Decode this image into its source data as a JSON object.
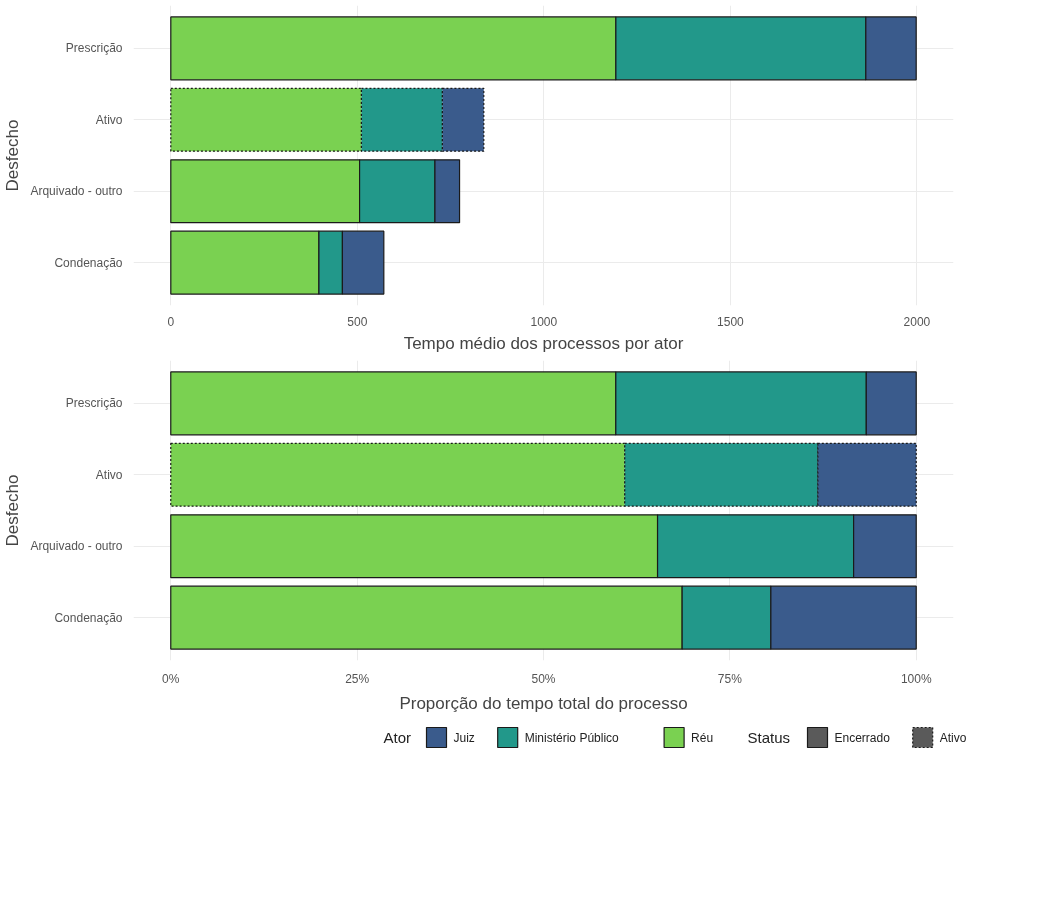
{
  "chart_data": [
    {
      "type": "bar",
      "orientation": "horizontal",
      "stacked": true,
      "xlabel": "Tempo médio dos processos por ator",
      "ylabel": "Desfecho",
      "categories": [
        "Prescrição",
        "Ativo",
        "Arquivado - outro",
        "Condenação"
      ],
      "series": [
        {
          "color": "#7ad151",
          "values": [
            1193,
            511,
            506,
            397
          ]
        },
        {
          "color": "#22988a",
          "values": [
            670,
            217,
            202,
            63
          ]
        },
        {
          "color": "#3a5b8c",
          "values": [
            135,
            111,
            66,
            111
          ]
        }
      ],
      "xlim": [
        -100,
        2098
      ],
      "xticks": [
        0,
        500,
        1000,
        1500,
        2000
      ],
      "grid": true,
      "legend": false
    },
    {
      "type": "bar",
      "orientation": "horizontal",
      "stacked": true,
      "xlabel": "Proporção do tempo total do processo",
      "ylabel": "Desfecho",
      "legend_title": "Ator",
      "categories": [
        "Prescrição",
        "Ativo",
        "Arquivado - outro",
        "Condenação"
      ],
      "series": [
        {
          "name": "Réu",
          "color": "#7ad151",
          "values": [
            59.7,
            60.9,
            65.3,
            68.6
          ]
        },
        {
          "name": "Ministério Público",
          "color": "#22988a",
          "values": [
            33.6,
            25.9,
            26.3,
            11.9
          ]
        },
        {
          "name": "Juiz",
          "color": "#3a5b8c",
          "values": [
            6.7,
            13.2,
            8.4,
            19.5
          ]
        }
      ],
      "xlim": [
        -5,
        105
      ],
      "xticks": [
        {
          "value": 0,
          "label": "0%"
        },
        {
          "value": 25,
          "label": "25%"
        },
        {
          "value": 50,
          "label": "50%"
        },
        {
          "value": 75,
          "label": "75%"
        },
        {
          "value": 100,
          "label": "100%"
        }
      ],
      "grid": true,
      "legend": "bottom",
      "annotations": [
        "Status",
        "Encerrado",
        "Ativo"
      ]
    }
  ]
}
